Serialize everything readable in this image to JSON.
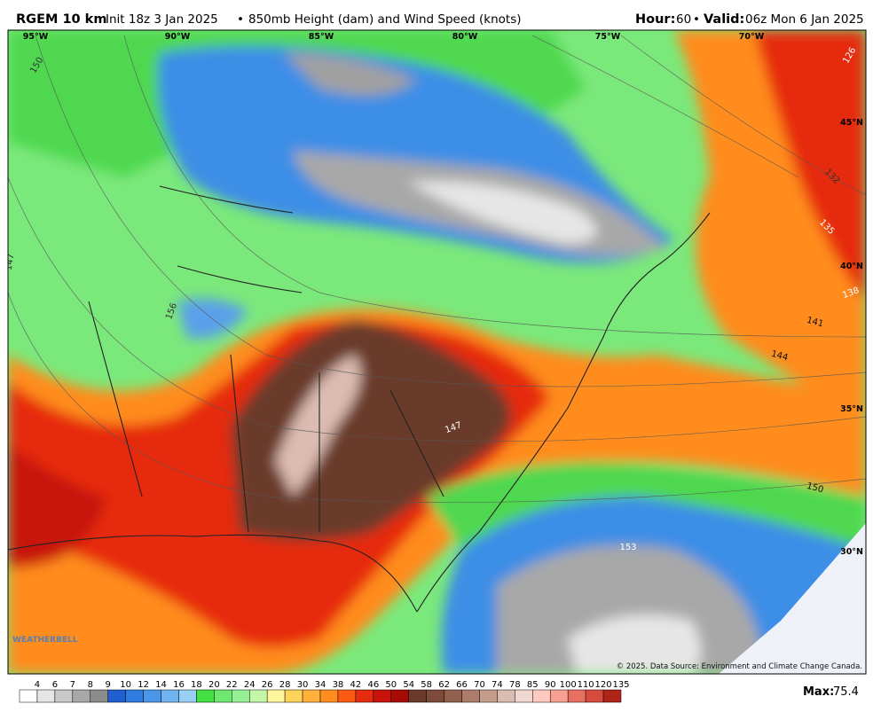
{
  "header": {
    "model": "RGEM 10 km",
    "init": "Init 18z 3 Jan 2025",
    "separator": "•",
    "product": "850mb Height (dam) and Wind Speed (knots)",
    "hour_label": "Hour:",
    "hour": 60,
    "valid_label": "Valid:",
    "valid": "06z Mon 6 Jan 2025"
  },
  "map": {
    "lon_labels": [
      "95°W",
      "90°W",
      "85°W",
      "80°W",
      "75°W",
      "70°W"
    ],
    "lat_labels": [
      "45°N",
      "40°N",
      "35°N",
      "30°N"
    ],
    "contour_labels": [
      150,
      147,
      156,
      126,
      132,
      135,
      138,
      141,
      144,
      147,
      150,
      153
    ],
    "logo": "WEATHERBELL",
    "credit": "© 2025. Data Source: Environment and Climate Change Canada."
  },
  "colorbar": {
    "labels": [
      4,
      6,
      7,
      8,
      9,
      10,
      12,
      14,
      16,
      18,
      20,
      22,
      24,
      26,
      28,
      30,
      34,
      38,
      42,
      46,
      50,
      54,
      58,
      62,
      66,
      70,
      74,
      78,
      85,
      90,
      100,
      110,
      120,
      135
    ],
    "colors": [
      "#ffffff",
      "#e6e6e6",
      "#c8c8c8",
      "#a8a8a8",
      "#8c8c8c",
      "#1f5fd0",
      "#2f7be0",
      "#4a97ea",
      "#6fb3f0",
      "#98cff5",
      "#44e044",
      "#6ee86e",
      "#96f096",
      "#c4f7a8",
      "#fff59a",
      "#ffd25a",
      "#ffb13a",
      "#ff8c1f",
      "#ff5a14",
      "#e62c0f",
      "#c8120a",
      "#a80a06",
      "#6a3a2a",
      "#7e4a3a",
      "#94604e",
      "#ad7c6a",
      "#c69c8c",
      "#dcbcb0",
      "#f0d8d0",
      "#ffc8c0",
      "#f5a090",
      "#e87060",
      "#d84a3e",
      "#b02418"
    ],
    "max_label": "Max:",
    "max": 75.4
  }
}
